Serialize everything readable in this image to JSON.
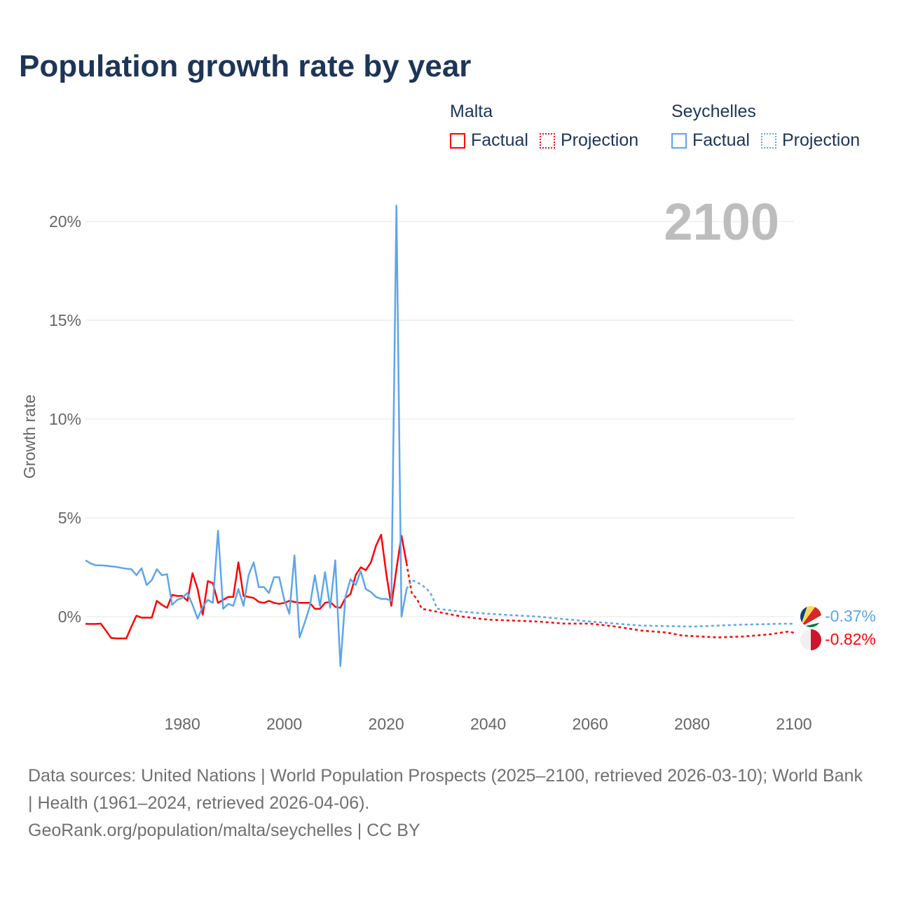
{
  "title": "Population growth rate by year",
  "legend": {
    "groups": [
      {
        "name": "Malta",
        "color": "#ff0000",
        "factual": "Factual",
        "projection": "Projection"
      },
      {
        "name": "Seychelles",
        "color": "#5ea5eb",
        "factual": "Factual",
        "projection": "Projection"
      }
    ]
  },
  "year_overlay": "2100",
  "end_labels": {
    "seychelles": "-0.37%",
    "malta": "-0.82%"
  },
  "footer": {
    "sources": "Data sources: United Nations | World Population Prospects (2025–2100, retrieved 2026-03-10); World Bank | Health (1961–2024, retrieved 2026-04-06).",
    "credit": "GeoRank.org/population/malta/seychelles | CC BY"
  },
  "chart_data": {
    "type": "line",
    "title": "Population growth rate by year",
    "xlabel": "",
    "ylabel": "Growth rate",
    "xlim": [
      1961,
      2100
    ],
    "ylim": [
      -3.5,
      22
    ],
    "xticks": [
      1980,
      2000,
      2020,
      2040,
      2060,
      2080,
      2100
    ],
    "yticks": [
      {
        "v": 0,
        "label": "0%"
      },
      {
        "v": 5,
        "label": "5%"
      },
      {
        "v": 10,
        "label": "10%"
      },
      {
        "v": 15,
        "label": "15%"
      },
      {
        "v": 20,
        "label": "20%"
      }
    ],
    "series": [
      {
        "name": "Malta Factual",
        "color": "#ff0000",
        "dashed": false,
        "start": 1961,
        "values": [
          -0.36,
          -0.37,
          -0.37,
          -0.35,
          -0.7,
          -1.07,
          -1.1,
          -1.1,
          -1.1,
          -0.5,
          0.05,
          -0.05,
          -0.05,
          -0.05,
          0.8,
          0.6,
          0.45,
          1.1,
          1.05,
          1.05,
          0.8,
          2.2,
          1.4,
          0.1,
          1.8,
          1.7,
          0.7,
          0.85,
          1.0,
          1.0,
          2.75,
          1.05,
          1.0,
          0.95,
          0.75,
          0.7,
          0.8,
          0.7,
          0.65,
          0.7,
          0.8,
          0.75,
          0.7,
          0.7,
          0.7,
          0.4,
          0.4,
          0.7,
          0.75,
          0.5,
          0.45,
          0.95,
          1.15,
          2.1,
          2.5,
          2.35,
          2.75,
          3.6,
          4.15,
          2.2,
          0.55,
          2.4,
          4.1,
          2.7
        ]
      },
      {
        "name": "Malta Projection",
        "color": "#ff0000",
        "dashed": true,
        "points": [
          [
            2024,
            2.7
          ],
          [
            2025,
            1.2
          ],
          [
            2026,
            0.9
          ],
          [
            2027,
            0.4
          ],
          [
            2030,
            0.25
          ],
          [
            2035,
            0.0
          ],
          [
            2040,
            -0.15
          ],
          [
            2050,
            -0.25
          ],
          [
            2055,
            -0.35
          ],
          [
            2060,
            -0.35
          ],
          [
            2065,
            -0.5
          ],
          [
            2070,
            -0.7
          ],
          [
            2075,
            -0.8
          ],
          [
            2078,
            -0.95
          ],
          [
            2085,
            -1.05
          ],
          [
            2090,
            -1.0
          ],
          [
            2095,
            -0.9
          ],
          [
            2099,
            -0.75
          ],
          [
            2100,
            -0.82
          ]
        ]
      },
      {
        "name": "Seychelles Factual",
        "color": "#5ea5eb",
        "dashed": false,
        "start": 1961,
        "values": [
          2.85,
          2.7,
          2.6,
          2.6,
          2.58,
          2.55,
          2.52,
          2.47,
          2.43,
          2.4,
          2.1,
          2.45,
          1.6,
          1.85,
          2.4,
          2.1,
          2.15,
          0.6,
          0.85,
          0.95,
          1.2,
          0.6,
          -0.1,
          0.5,
          0.85,
          0.7,
          4.35,
          0.4,
          0.65,
          0.55,
          1.4,
          0.55,
          2.1,
          2.75,
          1.5,
          1.5,
          1.2,
          2.0,
          2.0,
          0.85,
          0.15,
          3.1,
          -1.05,
          -0.3,
          0.5,
          2.1,
          0.55,
          2.25,
          0.45,
          2.85,
          -2.5,
          1.0,
          1.9,
          1.6,
          2.3,
          1.4,
          1.25,
          1.0,
          0.9,
          0.9,
          0.8,
          20.8,
          0.0,
          1.4
        ]
      },
      {
        "name": "Seychelles Projection",
        "color": "#5ea5eb",
        "dashed": true,
        "points": [
          [
            2024,
            1.4
          ],
          [
            2025,
            1.85
          ],
          [
            2026,
            1.75
          ],
          [
            2027,
            1.6
          ],
          [
            2028,
            1.4
          ],
          [
            2029,
            1.05
          ],
          [
            2030,
            0.4
          ],
          [
            2035,
            0.25
          ],
          [
            2040,
            0.15
          ],
          [
            2050,
            0.0
          ],
          [
            2060,
            -0.25
          ],
          [
            2070,
            -0.45
          ],
          [
            2080,
            -0.5
          ],
          [
            2090,
            -0.4
          ],
          [
            2099,
            -0.35
          ],
          [
            2100,
            -0.37
          ]
        ]
      }
    ]
  }
}
